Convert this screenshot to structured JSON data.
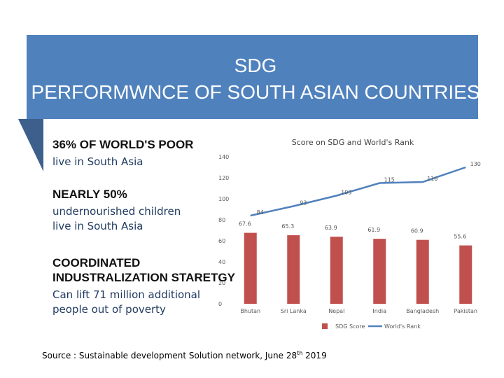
{
  "slide": {
    "title_lines": [
      "SDG",
      "PERFORMWNCE OF SOUTH ASIAN COUNTRIES"
    ],
    "points": [
      {
        "heading": [
          "36% OF WORLD'S POOR"
        ],
        "body": [
          "live in South Asia"
        ]
      },
      {
        "heading": [
          "NEARLY 50%"
        ],
        "body": [
          "undernourished children",
          "live in South Asia"
        ]
      },
      {
        "heading": [
          "COORDINATED",
          "INDUSTRALIZATION STARETGY"
        ],
        "body": [
          "Can lift 71 million additional",
          "people out of poverty"
        ]
      }
    ],
    "source": {
      "before": "Source : Sustainable development Solution network, June 28",
      "superscript": "th",
      "after": " 2019"
    }
  },
  "chart_data": {
    "type": "bar",
    "title": "Score on SDG and World's Rank",
    "categories": [
      "Bhutan",
      "Sri Lanka",
      "Nepal",
      "India",
      "Bangladesh",
      "Pakistan"
    ],
    "series": [
      {
        "name": "SDG Score",
        "type": "bar",
        "color": "#c0504d",
        "values": [
          67.6,
          65.3,
          63.9,
          61.9,
          60.9,
          55.6
        ]
      },
      {
        "name": "World's Rank",
        "type": "line",
        "color": "#4f81bd",
        "values": [
          84,
          93,
          103,
          115,
          116,
          130
        ]
      }
    ],
    "ylim": [
      0,
      140
    ],
    "yticks": [
      0,
      20,
      40,
      60,
      80,
      100,
      120,
      140
    ],
    "grid": false,
    "legend": "bottom"
  }
}
